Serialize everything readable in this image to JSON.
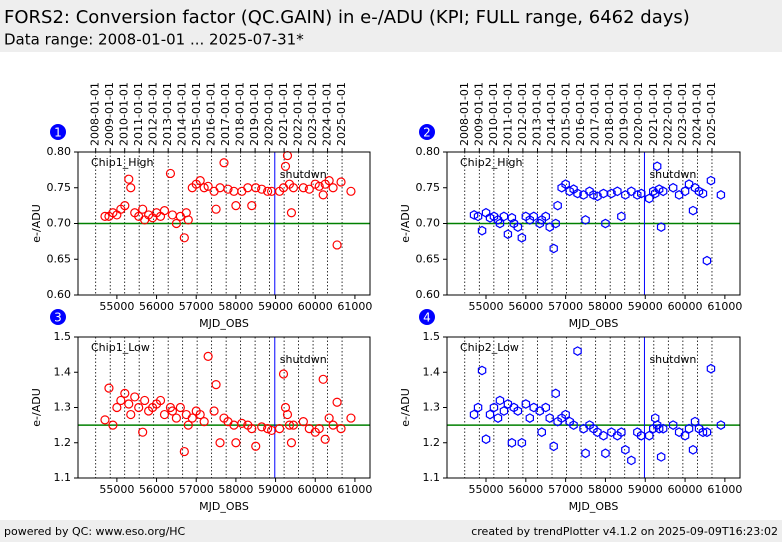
{
  "header": {
    "title": "FORS2: Conversion factor (QC.GAIN) in e-/ADU (KPI; FULL range, 6462 days)",
    "subtitle": "Data range: 2008-01-01 ... 2025-07-31*"
  },
  "footer": {
    "left": "powered by QC: www.eso.org/HC",
    "right": "created by trendPlotter v4.1.2 on 2025-09-09T16:23:02"
  },
  "chart_data": [
    {
      "type": "scatter",
      "panel": "1",
      "label": "Chip1_High",
      "xlabel": "MJD_OBS",
      "ylabel": "e-/ADU",
      "xlim": [
        54020,
        61380
      ],
      "xticks": [
        55000,
        56000,
        57000,
        58000,
        59000,
        60000,
        61000
      ],
      "top_ticks": [
        {
          "value": 54466,
          "label": "2008-01-01"
        },
        {
          "value": 54832,
          "label": "2009-01-01"
        },
        {
          "value": 55197,
          "label": "2010-01-01"
        },
        {
          "value": 55562,
          "label": "2011-01-01"
        },
        {
          "value": 55927,
          "label": "2012-01-01"
        },
        {
          "value": 56293,
          "label": "2013-01-01"
        },
        {
          "value": 56658,
          "label": "2014-01-01"
        },
        {
          "value": 57023,
          "label": "2015-01-01"
        },
        {
          "value": 57388,
          "label": "2016-01-01"
        },
        {
          "value": 57754,
          "label": "2017-01-01"
        },
        {
          "value": 58119,
          "label": "2018-01-01"
        },
        {
          "value": 58484,
          "label": "2019-01-01"
        },
        {
          "value": 58849,
          "label": "2020-01-01"
        },
        {
          "value": 59215,
          "label": "2021-01-01"
        },
        {
          "value": 59580,
          "label": "2022-01-01"
        },
        {
          "value": 59945,
          "label": "2023-01-01"
        },
        {
          "value": 60310,
          "label": "2024-01-01"
        },
        {
          "value": 60676,
          "label": "2025-01-01"
        }
      ],
      "ylim": [
        0.6,
        0.8
      ],
      "yticks": [
        {
          "value": 0.6,
          "label": "0.60"
        },
        0.65,
        {
          "value": 0.7,
          "label": "0.70"
        },
        0.75,
        {
          "value": 0.8,
          "label": "0.80"
        }
      ],
      "reference_line": 0.7,
      "reference_color": "#008000",
      "event": {
        "x": 58980,
        "label": "shutdwn",
        "color": "#0000ff"
      },
      "series": [
        {
          "color": "#ff0000",
          "marker": "circle",
          "x": [
            54700,
            54800,
            54900,
            55000,
            55100,
            55200,
            55300,
            55350,
            55450,
            55550,
            55650,
            55700,
            55800,
            55900,
            56000,
            56100,
            56200,
            56350,
            56400,
            56500,
            56600,
            56700,
            56750,
            56800,
            56900,
            57000,
            57100,
            57200,
            57300,
            57450,
            57500,
            57600,
            57700,
            57800,
            57950,
            58000,
            58150,
            58300,
            58400,
            58500,
            58650,
            58800,
            58900,
            59100,
            59200,
            59250,
            59300,
            59350,
            59400,
            59450,
            59700,
            59850,
            60000,
            60100,
            60200,
            60250,
            60350,
            60450,
            60550,
            60650,
            60900
          ],
          "values": [
            0.71,
            0.71,
            0.715,
            0.712,
            0.72,
            0.725,
            0.762,
            0.75,
            0.715,
            0.71,
            0.72,
            0.705,
            0.712,
            0.708,
            0.715,
            0.71,
            0.718,
            0.77,
            0.712,
            0.7,
            0.71,
            0.68,
            0.715,
            0.705,
            0.75,
            0.755,
            0.76,
            0.75,
            0.752,
            0.745,
            0.72,
            0.75,
            0.785,
            0.748,
            0.745,
            0.725,
            0.745,
            0.75,
            0.725,
            0.75,
            0.748,
            0.745,
            0.745,
            0.745,
            0.75,
            0.78,
            0.795,
            0.755,
            0.715,
            0.75,
            0.75,
            0.748,
            0.755,
            0.752,
            0.74,
            0.755,
            0.76,
            0.75,
            0.67,
            0.758,
            0.745
          ]
        }
      ]
    },
    {
      "type": "scatter",
      "panel": "2",
      "label": "Chip2_High",
      "xlabel": "MJD_OBS",
      "ylabel": "e-/ADU",
      "xlim": [
        54020,
        61380
      ],
      "xticks": [
        55000,
        56000,
        57000,
        58000,
        59000,
        60000,
        61000
      ],
      "top_ticks": [
        {
          "value": 54466,
          "label": "2008-01-01"
        },
        {
          "value": 54832,
          "label": "2009-01-01"
        },
        {
          "value": 55197,
          "label": "2010-01-01"
        },
        {
          "value": 55562,
          "label": "2011-01-01"
        },
        {
          "value": 55927,
          "label": "2012-01-01"
        },
        {
          "value": 56293,
          "label": "2013-01-01"
        },
        {
          "value": 56658,
          "label": "2014-01-01"
        },
        {
          "value": 57023,
          "label": "2015-01-01"
        },
        {
          "value": 57388,
          "label": "2016-01-01"
        },
        {
          "value": 57754,
          "label": "2017-01-01"
        },
        {
          "value": 58119,
          "label": "2018-01-01"
        },
        {
          "value": 58484,
          "label": "2019-01-01"
        },
        {
          "value": 58849,
          "label": "2020-01-01"
        },
        {
          "value": 59215,
          "label": "2021-01-01"
        },
        {
          "value": 59580,
          "label": "2022-01-01"
        },
        {
          "value": 59945,
          "label": "2023-01-01"
        },
        {
          "value": 60310,
          "label": "2024-01-01"
        },
        {
          "value": 60676,
          "label": "2025-01-01"
        }
      ],
      "ylim": [
        0.6,
        0.8
      ],
      "yticks": [
        {
          "value": 0.6,
          "label": "0.60"
        },
        0.65,
        {
          "value": 0.7,
          "label": "0.70"
        },
        0.75,
        {
          "value": 0.8,
          "label": "0.80"
        }
      ],
      "reference_line": 0.7,
      "reference_color": "#008000",
      "event": {
        "x": 58980,
        "label": "shutdwn",
        "color": "#0000ff"
      },
      "series": [
        {
          "color": "#0000ff",
          "marker": "hexagon",
          "x": [
            54700,
            54800,
            54900,
            55000,
            55100,
            55200,
            55300,
            55350,
            55450,
            55550,
            55650,
            55700,
            55800,
            55900,
            56000,
            56100,
            56200,
            56350,
            56400,
            56500,
            56600,
            56700,
            56750,
            56800,
            56900,
            57000,
            57100,
            57200,
            57300,
            57450,
            57500,
            57600,
            57700,
            57800,
            57950,
            58000,
            58150,
            58300,
            58400,
            58500,
            58650,
            58800,
            58900,
            59100,
            59200,
            59250,
            59300,
            59350,
            59400,
            59450,
            59700,
            59850,
            60000,
            60100,
            60200,
            60250,
            60350,
            60450,
            60550,
            60650,
            60900
          ],
          "values": [
            0.712,
            0.71,
            0.69,
            0.715,
            0.708,
            0.71,
            0.705,
            0.7,
            0.71,
            0.685,
            0.708,
            0.7,
            0.695,
            0.68,
            0.71,
            0.705,
            0.71,
            0.7,
            0.705,
            0.71,
            0.695,
            0.665,
            0.7,
            0.725,
            0.75,
            0.755,
            0.745,
            0.748,
            0.742,
            0.74,
            0.705,
            0.745,
            0.74,
            0.738,
            0.742,
            0.7,
            0.742,
            0.745,
            0.71,
            0.74,
            0.745,
            0.74,
            0.742,
            0.735,
            0.745,
            0.742,
            0.78,
            0.748,
            0.695,
            0.745,
            0.75,
            0.74,
            0.745,
            0.755,
            0.718,
            0.75,
            0.745,
            0.742,
            0.648,
            0.76,
            0.74
          ]
        }
      ]
    },
    {
      "type": "scatter",
      "panel": "3",
      "label": "Chip1_Low",
      "xlabel": "MJD_OBS",
      "ylabel": "e-/ADU",
      "xlim": [
        54020,
        61380
      ],
      "xticks": [
        55000,
        56000,
        57000,
        58000,
        59000,
        60000,
        61000
      ],
      "xgrid": [
        54466,
        54832,
        55197,
        55562,
        55927,
        56293,
        56658,
        57023,
        57388,
        57754,
        58119,
        58484,
        58849,
        59215,
        59580,
        59945,
        60310,
        60676
      ],
      "ylim": [
        1.1,
        1.5
      ],
      "yticks": [
        1.1,
        1.2,
        1.3,
        1.4,
        1.5
      ],
      "reference_line": 1.25,
      "reference_color": "#008000",
      "event": {
        "x": 58980,
        "label": "shutdwn",
        "color": "#0000ff"
      },
      "series": [
        {
          "color": "#ff0000",
          "marker": "circle",
          "x": [
            54700,
            54800,
            54900,
            55000,
            55100,
            55200,
            55300,
            55350,
            55450,
            55550,
            55650,
            55700,
            55800,
            55900,
            56000,
            56100,
            56200,
            56350,
            56400,
            56500,
            56600,
            56700,
            56750,
            56800,
            56900,
            57000,
            57100,
            57200,
            57300,
            57450,
            57500,
            57600,
            57700,
            57800,
            57950,
            58000,
            58150,
            58300,
            58400,
            58500,
            58650,
            58800,
            58900,
            59100,
            59200,
            59250,
            59300,
            59350,
            59400,
            59450,
            59700,
            59850,
            60000,
            60100,
            60200,
            60250,
            60350,
            60450,
            60550,
            60650,
            60900
          ],
          "values": [
            1.265,
            1.355,
            1.25,
            1.3,
            1.32,
            1.34,
            1.31,
            1.28,
            1.33,
            1.3,
            1.23,
            1.32,
            1.29,
            1.3,
            1.31,
            1.32,
            1.28,
            1.3,
            1.29,
            1.27,
            1.3,
            1.175,
            1.28,
            1.25,
            1.27,
            1.29,
            1.28,
            1.26,
            1.445,
            1.29,
            1.365,
            1.2,
            1.27,
            1.26,
            1.25,
            1.2,
            1.255,
            1.25,
            1.24,
            1.19,
            1.245,
            1.24,
            1.235,
            1.24,
            1.395,
            1.3,
            1.28,
            1.25,
            1.2,
            1.25,
            1.26,
            1.24,
            1.23,
            1.24,
            1.38,
            1.21,
            1.27,
            1.25,
            1.315,
            1.24,
            1.27
          ]
        }
      ]
    },
    {
      "type": "scatter",
      "panel": "4",
      "label": "Chip2_Low",
      "xlabel": "MJD_OBS",
      "ylabel": "e-/ADU",
      "xlim": [
        54020,
        61380
      ],
      "xticks": [
        55000,
        56000,
        57000,
        58000,
        59000,
        60000,
        61000
      ],
      "xgrid": [
        54466,
        54832,
        55197,
        55562,
        55927,
        56293,
        56658,
        57023,
        57388,
        57754,
        58119,
        58484,
        58849,
        59215,
        59580,
        59945,
        60310,
        60676
      ],
      "ylim": [
        1.1,
        1.5
      ],
      "yticks": [
        1.1,
        1.2,
        1.3,
        1.4,
        1.5
      ],
      "reference_line": 1.25,
      "reference_color": "#008000",
      "event": {
        "x": 58980,
        "label": "shutdwn",
        "color": "#0000ff"
      },
      "series": [
        {
          "color": "#0000ff",
          "marker": "hexagon",
          "x": [
            54700,
            54800,
            54900,
            55000,
            55100,
            55200,
            55300,
            55350,
            55450,
            55550,
            55650,
            55700,
            55800,
            55900,
            56000,
            56100,
            56200,
            56350,
            56400,
            56500,
            56600,
            56700,
            56750,
            56800,
            56900,
            57000,
            57100,
            57200,
            57300,
            57450,
            57500,
            57600,
            57700,
            57800,
            57950,
            58000,
            58150,
            58300,
            58400,
            58500,
            58650,
            58800,
            58900,
            59100,
            59200,
            59250,
            59300,
            59350,
            59400,
            59450,
            59700,
            59850,
            60000,
            60100,
            60200,
            60250,
            60350,
            60450,
            60550,
            60650,
            60900
          ],
          "values": [
            1.28,
            1.3,
            1.405,
            1.21,
            1.28,
            1.3,
            1.27,
            1.32,
            1.29,
            1.31,
            1.2,
            1.3,
            1.29,
            1.2,
            1.31,
            1.27,
            1.3,
            1.29,
            1.23,
            1.3,
            1.27,
            1.19,
            1.34,
            1.26,
            1.27,
            1.28,
            1.26,
            1.25,
            1.46,
            1.24,
            1.17,
            1.25,
            1.24,
            1.23,
            1.22,
            1.17,
            1.23,
            1.22,
            1.23,
            1.18,
            1.15,
            1.23,
            1.22,
            1.22,
            1.24,
            1.27,
            1.25,
            1.24,
            1.16,
            1.24,
            1.25,
            1.23,
            1.22,
            1.24,
            1.18,
            1.26,
            1.24,
            1.23,
            1.23,
            1.41,
            1.25
          ]
        }
      ]
    }
  ]
}
